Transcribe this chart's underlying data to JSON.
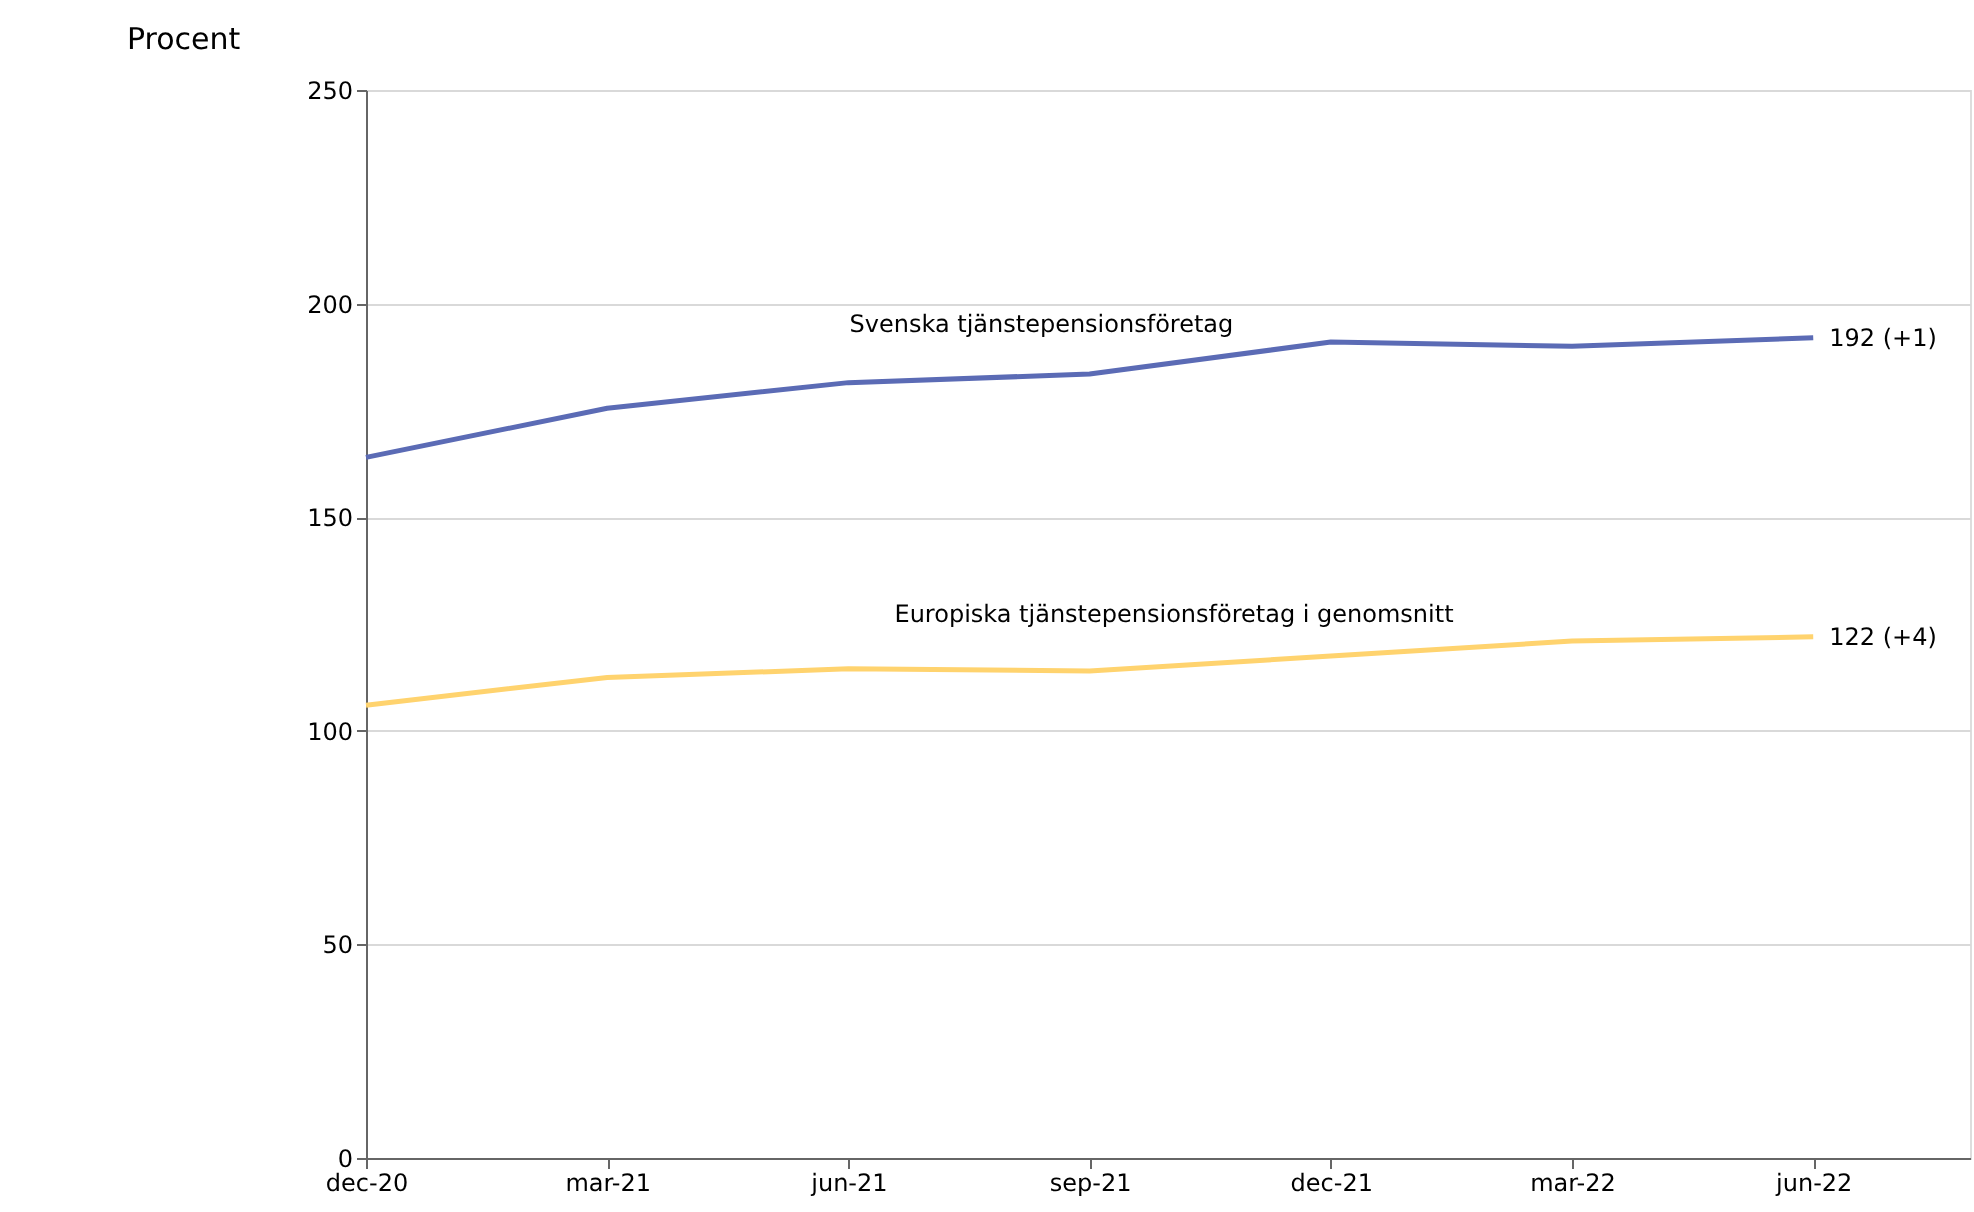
{
  "chart_data": {
    "type": "line",
    "ylabel": "Procent",
    "categories": [
      "dec-20",
      "mar-21",
      "jun-21",
      "sep-21",
      "dec-21",
      "mar-22",
      "jun-22"
    ],
    "series": [
      {
        "name": "Svenska tjänstepensionsföretag",
        "color": "#5b6bb5",
        "values": [
          164,
          175.5,
          181.5,
          183.5,
          191,
          190,
          192
        ]
      },
      {
        "name": "Europiska tjänstepensionsföretag i genomsnitt",
        "color": "#ffd36e",
        "values": [
          106,
          112.5,
          114.5,
          114,
          117.5,
          121,
          122
        ]
      }
    ],
    "annotations": [
      {
        "text": "192 (+1)",
        "x": "jun-22",
        "y": 192
      },
      {
        "text": "122 (+4)",
        "x": "jun-22",
        "y": 122
      }
    ],
    "ylim": [
      0,
      250
    ],
    "yticks": [
      0,
      50,
      100,
      150,
      200,
      250
    ],
    "grid": "y",
    "marker": "none",
    "line_style": "solid"
  }
}
